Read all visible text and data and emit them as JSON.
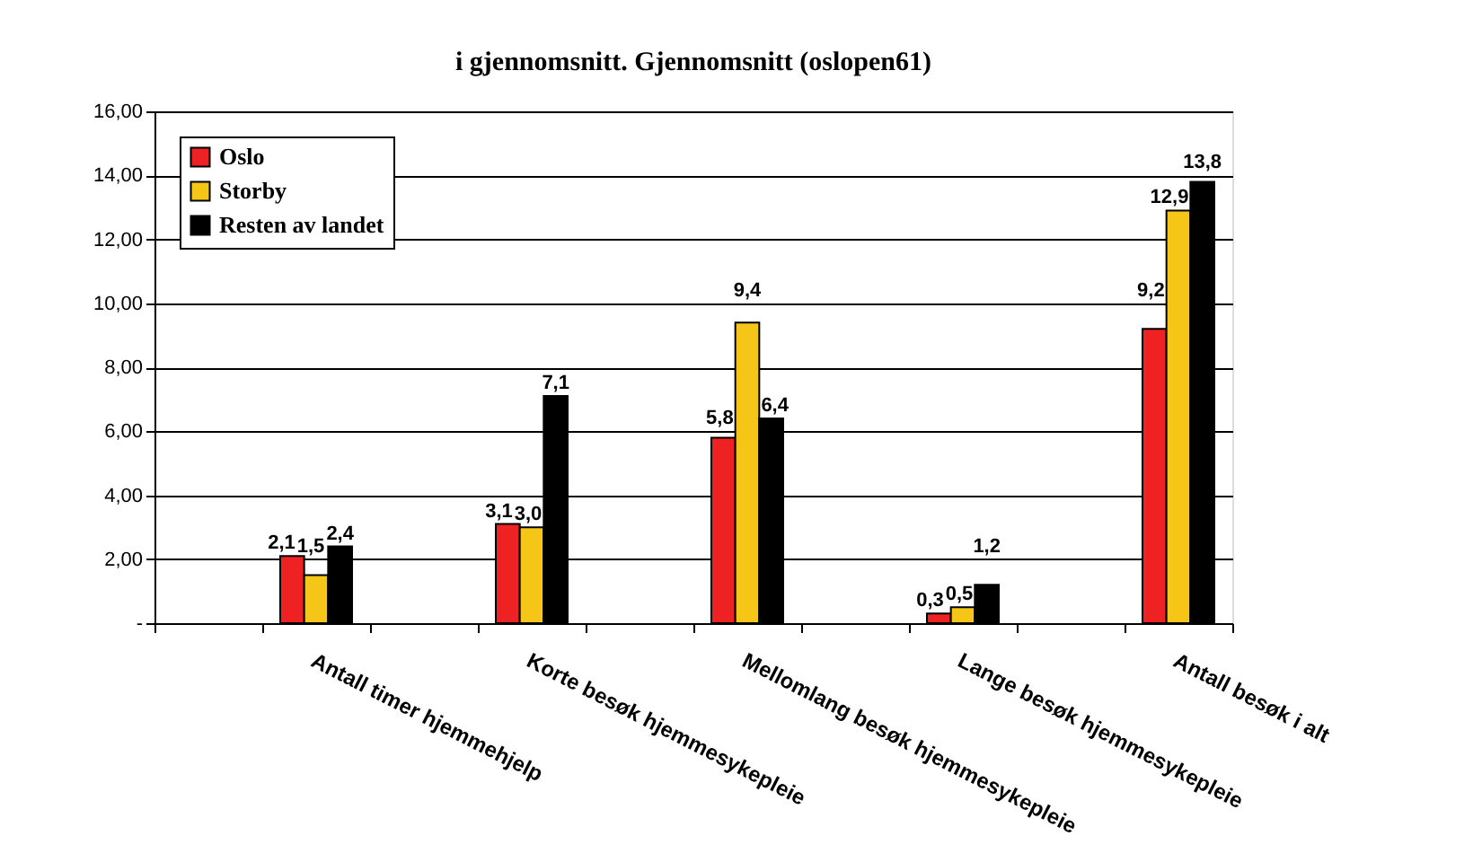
{
  "chart_data": {
    "type": "bar",
    "title": "i gjennomsnitt. Gjennomsnitt (oslopen61)",
    "categories": [
      null,
      "Antall timer hjemmehjelp",
      null,
      "Korte besøk hjemmesykepleie",
      null,
      "Mellomlang besøk hjemmesykepleie",
      null,
      "Lange besøk hjemmesykepleie",
      null,
      "Antall besøk i alt"
    ],
    "series": [
      {
        "name": "Oslo",
        "color": "#ee2222",
        "values": [
          null,
          2.1,
          null,
          3.1,
          null,
          5.8,
          null,
          0.3,
          null,
          9.2
        ],
        "value_labels": [
          null,
          "2,1",
          null,
          "3,1",
          null,
          "5,8",
          null,
          "0,3",
          null,
          "9,2"
        ]
      },
      {
        "name": "Storby",
        "color": "#f5c518",
        "values": [
          null,
          1.5,
          null,
          3.0,
          null,
          9.4,
          null,
          0.5,
          null,
          12.9
        ],
        "value_labels": [
          null,
          "1,5",
          null,
          "3,0",
          null,
          "9,4",
          null,
          "0,5",
          null,
          "12,9"
        ]
      },
      {
        "name": "Resten av landet",
        "color": "#000000",
        "values": [
          null,
          2.4,
          null,
          7.1,
          null,
          6.4,
          null,
          1.2,
          null,
          13.8
        ],
        "value_labels": [
          null,
          "2,4",
          null,
          "7,1",
          null,
          "6,4",
          null,
          "1,2",
          null,
          "13,8"
        ]
      }
    ],
    "ylim": [
      0,
      16
    ],
    "yticks": [
      {
        "value": 0,
        "label": "-"
      },
      {
        "value": 2,
        "label": "2,00"
      },
      {
        "value": 4,
        "label": "4,00"
      },
      {
        "value": 6,
        "label": "6,00"
      },
      {
        "value": 8,
        "label": "8,00"
      },
      {
        "value": 10,
        "label": "10,00"
      },
      {
        "value": 12,
        "label": "12,00"
      },
      {
        "value": 14,
        "label": "14,00"
      },
      {
        "value": 16,
        "label": "16,00"
      }
    ],
    "grid": "y",
    "legend": "top left"
  }
}
